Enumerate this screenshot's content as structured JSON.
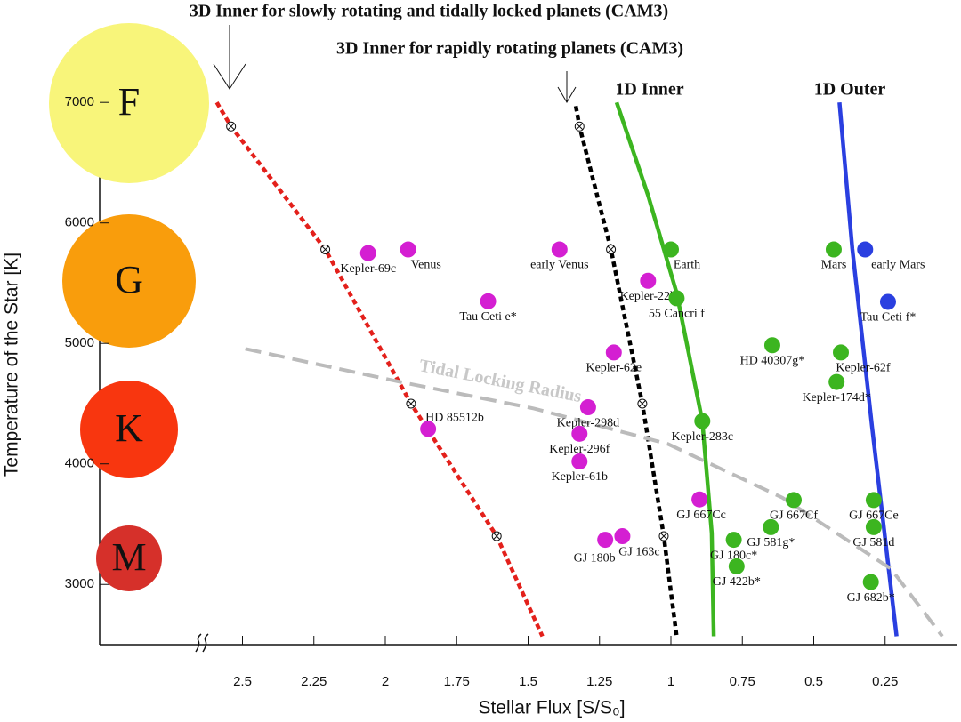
{
  "chart_data": {
    "type": "scatter",
    "x_label": "Stellar Flux [S/S₀]",
    "y_label": "Temperature of the Star [K]",
    "xlim": [
      3,
      0
    ],
    "ylim": [
      2500,
      7850
    ],
    "xticks": [
      2.5,
      2.25,
      2,
      1.75,
      1.5,
      1.25,
      1,
      0.75,
      0.5,
      0.25
    ],
    "yticks": [
      3000,
      4000,
      5000,
      6000,
      7000
    ],
    "spectral_types": [
      "F",
      "G",
      "K",
      "M"
    ],
    "series": [
      {
        "type": "points",
        "color": "#d41fd2",
        "labels": [
          "Kepler-69c",
          "Venus",
          "Tau Ceti e*",
          "HD 85512b",
          "early Venus",
          "Kepler-22b",
          "Kepler-62e",
          "Kepler-298d",
          "Kepler-296f",
          "Kepler-61b",
          "GJ 667Cc",
          "GJ 180b",
          "GJ 163c"
        ],
        "x": [
          2.06,
          1.92,
          1.64,
          1.85,
          1.39,
          1.08,
          1.2,
          1.29,
          1.32,
          1.32,
          0.9,
          1.23,
          1.17
        ],
        "y": [
          5750,
          5780,
          5350,
          4290,
          5780,
          5520,
          4925,
          4470,
          4250,
          4020,
          3705,
          3370,
          3400
        ]
      },
      {
        "type": "points",
        "color": "#3cb520",
        "labels": [
          "Earth",
          "55 Cancri f",
          "Kepler-283c",
          "HD 40307g*",
          "Kepler-62f",
          "Kepler-174d*",
          "Mars",
          "GJ 667Cf",
          "GJ 667Ce",
          "GJ 581g*",
          "GJ 581d",
          "GJ 180c*",
          "GJ 422b*",
          "GJ 682b*"
        ],
        "x": [
          1.0,
          0.98,
          0.89,
          0.645,
          0.405,
          0.42,
          0.43,
          0.57,
          0.29,
          0.65,
          0.29,
          0.78,
          0.77,
          0.3
        ],
        "y": [
          5780,
          5375,
          4355,
          4985,
          4925,
          4680,
          5780,
          3700,
          3700,
          3475,
          3475,
          3370,
          3150,
          3020
        ]
      },
      {
        "type": "points",
        "color": "#2a3fe0",
        "labels": [
          "early Mars",
          "Tau Ceti f*"
        ],
        "x": [
          0.32,
          0.24
        ],
        "y": [
          5780,
          5345
        ]
      },
      {
        "type": "line",
        "name": "3D Inner for slowly rotating and tidally locked planets (CAM3)",
        "color": "#e3201b",
        "dash": true,
        "x": [
          2.59,
          2.54,
          2.21,
          1.91,
          1.61,
          1.45
        ],
        "y": [
          7000,
          6800,
          5780,
          4500,
          3400,
          2570
        ],
        "markers_x": [
          2.54,
          2.21,
          1.91,
          1.61
        ],
        "markers_y": [
          6800,
          5780,
          4500,
          3400
        ]
      },
      {
        "type": "line",
        "name": "3D Inner for rapidly rotating planets (CAM3)",
        "color": "#000000",
        "dash": true,
        "x": [
          1.333,
          1.32,
          1.21,
          1.1,
          1.025,
          0.98
        ],
        "y": [
          6970,
          6800,
          5780,
          4500,
          3400,
          2570
        ],
        "markers_x": [
          1.32,
          1.21,
          1.1,
          1.025
        ],
        "markers_y": [
          6800,
          5780,
          4500,
          3400
        ]
      },
      {
        "type": "line",
        "name": "1D Inner",
        "color": "#3cb520",
        "dash": false,
        "x": [
          1.19,
          1.08,
          0.98,
          0.89,
          0.857,
          0.85
        ],
        "y": [
          7000,
          6230,
          5420,
          4355,
          3425,
          2570
        ]
      },
      {
        "type": "line",
        "name": "1D Outer",
        "color": "#2a3fe0",
        "dash": false,
        "x": [
          0.41,
          0.365,
          0.296,
          0.21
        ],
        "y": [
          7000,
          5790,
          4310,
          2570
        ]
      },
      {
        "type": "line",
        "name": "Tidal Locking Radius",
        "color": "#bbbbbb",
        "dash": true,
        "x": [
          2.49,
          1.947,
          1.48,
          1.01,
          0.61,
          0.23,
          0.05
        ],
        "y": [
          4955,
          4680,
          4460,
          4165,
          3720,
          3130,
          2570
        ]
      }
    ]
  }
}
